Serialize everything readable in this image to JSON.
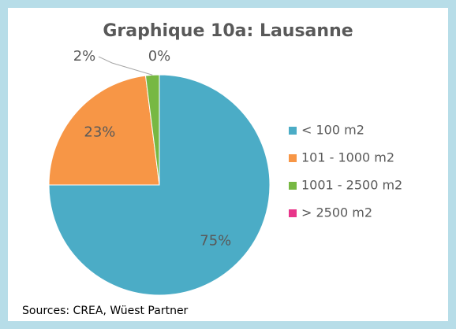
{
  "chart_data": {
    "type": "pie",
    "title": "Graphique 10a: Lausanne",
    "categories": [
      "< 100 m2",
      "101 - 1000 m2",
      "1001 - 2500 m2",
      "> 2500 m2"
    ],
    "values": [
      75,
      23,
      2,
      0
    ],
    "value_labels": [
      "75%",
      "23%",
      "2%",
      "0%"
    ],
    "colors": [
      "#4bacc6",
      "#f79646",
      "#77b843",
      "#e8358a"
    ],
    "source": "Sources: CREA, Wüest Partner"
  }
}
